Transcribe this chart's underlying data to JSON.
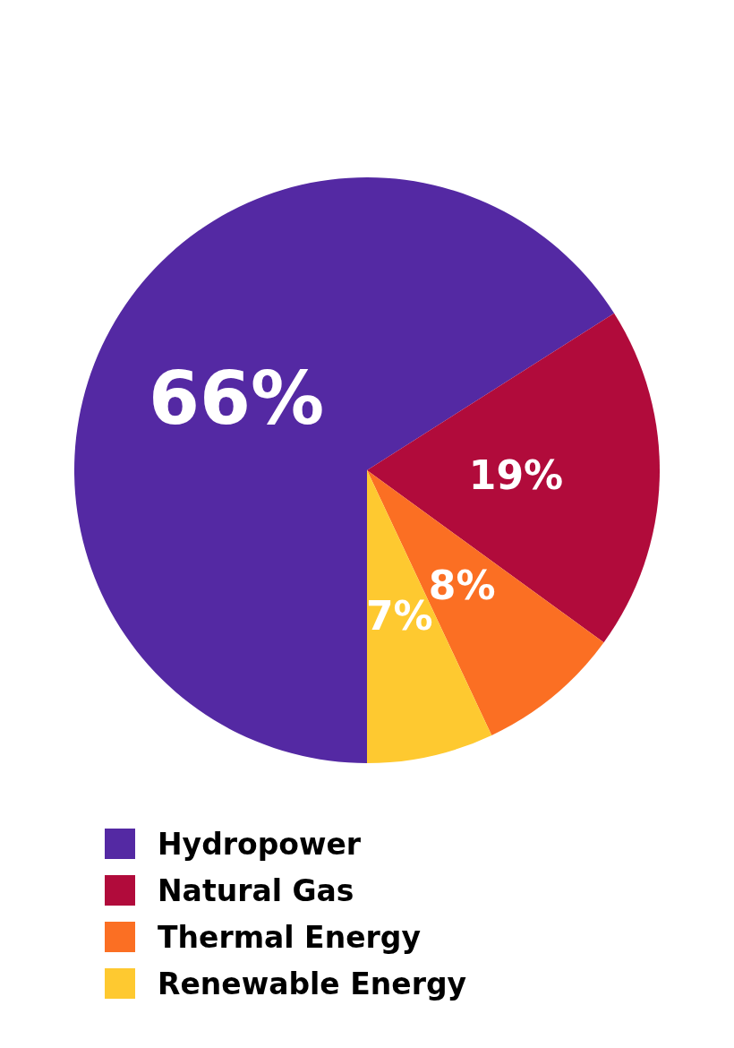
{
  "chart_data": {
    "type": "pie",
    "categories": [
      "Hydropower",
      "Natural Gas",
      "Thermal Energy",
      "Renewable Energy"
    ],
    "values": [
      66,
      19,
      8,
      7
    ],
    "colors": [
      "#5429a3",
      "#b10b3b",
      "#fb6f23",
      "#fec930"
    ],
    "value_labels": [
      "66%",
      "19%",
      "8%",
      "7%"
    ],
    "legend": "bottom left"
  }
}
